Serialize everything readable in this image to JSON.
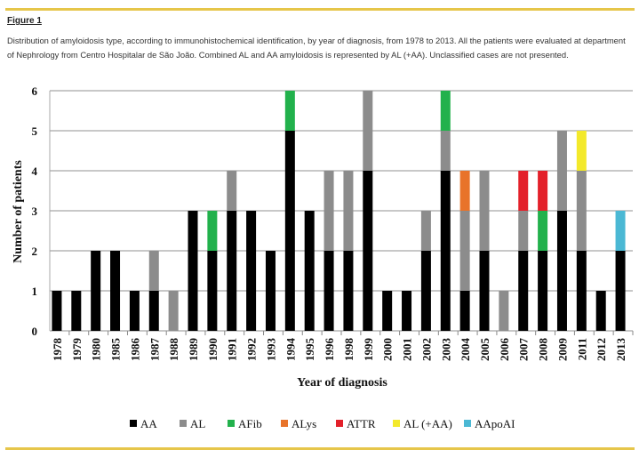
{
  "figure_label": "Figure 1",
  "caption": "Distribution of amyloidosis type, according to immunohistochemical identification, by year of diagnosis, from 1978 to 2013. All the patients were evaluated at department of Nephrology from Centro Hospitalar de São João. Combined AL and AA amyloidosis is represented by AL (+AA). Unclassified cases are not presented.",
  "chart_data": {
    "type": "bar",
    "stacked": true,
    "title": "",
    "xlabel": "Year of diagnosis",
    "ylabel": "Number of patients",
    "ylim": [
      0,
      6
    ],
    "yticks": [
      "0",
      "1",
      "2",
      "3",
      "4",
      "5",
      "6"
    ],
    "grid": true,
    "legend_position": "bottom",
    "categories": [
      "1978",
      "1979",
      "1980",
      "1985",
      "1986",
      "1987",
      "1988",
      "1989",
      "1990",
      "1991",
      "1992",
      "1993",
      "1994",
      "1995",
      "1996",
      "1998",
      "1999",
      "2000",
      "2001",
      "2002",
      "2003",
      "2004",
      "2005",
      "2006",
      "2007",
      "2008",
      "2009",
      "2011",
      "2012",
      "2013"
    ],
    "series": [
      {
        "name": "AA",
        "color": "#000000",
        "values": [
          1,
          1,
          2,
          2,
          1,
          1,
          0,
          3,
          2,
          3,
          3,
          2,
          5,
          3,
          2,
          2,
          4,
          1,
          1,
          2,
          4,
          1,
          2,
          0,
          2,
          2,
          3,
          2,
          1,
          2
        ]
      },
      {
        "name": "AL",
        "color": "#8c8c8c",
        "values": [
          0,
          0,
          0,
          0,
          0,
          1,
          1,
          0,
          0,
          1,
          0,
          0,
          0,
          0,
          2,
          2,
          2,
          0,
          0,
          1,
          1,
          2,
          2,
          1,
          1,
          0,
          2,
          2,
          0,
          0
        ]
      },
      {
        "name": "AFib",
        "color": "#22b14c",
        "values": [
          0,
          0,
          0,
          0,
          0,
          0,
          0,
          0,
          1,
          0,
          0,
          0,
          1,
          0,
          0,
          0,
          0,
          0,
          0,
          0,
          1,
          0,
          0,
          0,
          0,
          1,
          0,
          0,
          0,
          0
        ]
      },
      {
        "name": "ALys",
        "color": "#e8732a",
        "values": [
          0,
          0,
          0,
          0,
          0,
          0,
          0,
          0,
          0,
          0,
          0,
          0,
          0,
          0,
          0,
          0,
          0,
          0,
          0,
          0,
          0,
          1,
          0,
          0,
          0,
          0,
          0,
          0,
          0,
          0
        ]
      },
      {
        "name": "ATTR",
        "color": "#e3202a",
        "values": [
          0,
          0,
          0,
          0,
          0,
          0,
          0,
          0,
          0,
          0,
          0,
          0,
          0,
          0,
          0,
          0,
          0,
          0,
          0,
          0,
          0,
          0,
          0,
          0,
          1,
          1,
          0,
          0,
          0,
          0
        ]
      },
      {
        "name": "AL (+AA)",
        "color": "#f3e92b",
        "values": [
          0,
          0,
          0,
          0,
          0,
          0,
          0,
          0,
          0,
          0,
          0,
          0,
          0,
          0,
          0,
          0,
          0,
          0,
          0,
          0,
          0,
          0,
          0,
          0,
          0,
          0,
          0,
          1,
          0,
          0
        ]
      },
      {
        "name": "AApoAI",
        "color": "#4bb8d4",
        "values": [
          0,
          0,
          0,
          0,
          0,
          0,
          0,
          0,
          0,
          0,
          0,
          0,
          0,
          0,
          0,
          0,
          0,
          0,
          0,
          0,
          0,
          0,
          0,
          0,
          0,
          0,
          0,
          0,
          0,
          1
        ]
      }
    ]
  }
}
